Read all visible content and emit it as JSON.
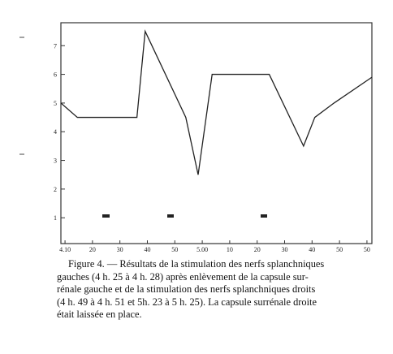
{
  "chart_data": {
    "type": "line",
    "x": [
      8.5,
      14.5,
      36.2,
      39.2,
      54,
      58.5,
      63.6,
      84.4,
      96.9,
      101,
      108,
      121.8
    ],
    "series": [
      {
        "color": "#222",
        "values": [
          5.0,
          4.5,
          4.5,
          7.5,
          4.5,
          2.5,
          6.0,
          6.0,
          3.5,
          4.5,
          5.0,
          5.9
        ]
      }
    ],
    "xlim": [
      8.5,
      121.8
    ],
    "xticks": [
      {
        "value": 10,
        "label": "4.10"
      },
      20,
      30,
      40,
      50,
      {
        "value": 60,
        "label": "5.00"
      },
      {
        "value": 70,
        "label": "10"
      },
      {
        "value": 80,
        "label": "20"
      },
      {
        "value": 90,
        "label": "30"
      },
      {
        "value": 100,
        "label": "40"
      },
      {
        "value": 110,
        "label": "50"
      },
      {
        "value": 120,
        "label": "50"
      }
    ],
    "ylim": [
      0.1,
      7.8
    ],
    "yticks": [
      1,
      2,
      3,
      4,
      5,
      6,
      7
    ]
  },
  "caption": [
    "Figure 4. — Résultats de la stimulation des nerfs splanchniques",
    "gauches (4 h. 25 à 4 h. 28) après enlèvement de la capsule sur-",
    "rénale gauche et de la stimulation des nerfs splanchniques droits",
    "(4 h. 49 à 4 h. 51 et 5h. 23 à 5 h. 25). La capsule surrénale droite",
    "était laissée en place."
  ]
}
